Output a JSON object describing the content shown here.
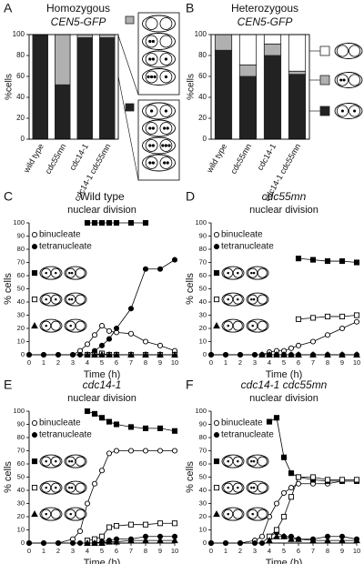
{
  "chart_data": [
    {
      "type": "stacked-bar",
      "panel": "A",
      "title": "Homozygous",
      "subtitle": "CEN5-GFP",
      "ylabel": "%cells",
      "categories": [
        "wild type",
        "cdc55mn",
        "cdc14-1",
        "cdc14-1 cdc55mn"
      ],
      "series": [
        {
          "color": "#222222",
          "values": [
            100,
            52,
            97,
            97
          ]
        },
        {
          "color": "#b0b0b0",
          "values": [
            0,
            48,
            3,
            3
          ]
        }
      ],
      "ylim": [
        0,
        100
      ],
      "yticks": [
        0,
        20,
        40,
        60,
        80,
        100
      ]
    },
    {
      "type": "stacked-bar",
      "panel": "B",
      "title": "Heterozygous",
      "subtitle": "CEN5-GFP",
      "ylabel": "%cells",
      "categories": [
        "wild type",
        "cdc55mn",
        "cdc14-1",
        "cdc14-1 cdc55mn"
      ],
      "series": [
        {
          "color": "#222222",
          "values": [
            85,
            60,
            80,
            62
          ]
        },
        {
          "color": "#b0b0b0",
          "values": [
            15,
            11,
            11,
            3
          ]
        },
        {
          "color": "#ffffff",
          "values": [
            0,
            29,
            9,
            35
          ]
        }
      ],
      "ylim": [
        0,
        100
      ],
      "yticks": [
        0,
        20,
        40,
        60,
        80,
        100
      ]
    },
    {
      "type": "line",
      "panel": "C",
      "title": "Wild type",
      "subtitle": "nuclear division",
      "ylabel": "% cells",
      "xlabel": "Time (h)",
      "x": [
        0,
        1,
        2,
        3,
        3.5,
        4,
        4.5,
        5,
        5.5,
        6,
        7,
        8,
        9,
        10
      ],
      "series": [
        {
          "name": "binucleate",
          "marker": "circle-open",
          "color": "#000000",
          "values": [
            0,
            0,
            0,
            0,
            3,
            8,
            15,
            22,
            18,
            17,
            16,
            10,
            7,
            3
          ]
        },
        {
          "name": "tetranucleate",
          "marker": "circle",
          "color": "#000000",
          "values": [
            0,
            0,
            0,
            0,
            0,
            0,
            3,
            7,
            12,
            20,
            35,
            65,
            65,
            72
          ]
        },
        {
          "marker": "square",
          "color": "#000000",
          "values": [
            null,
            null,
            null,
            null,
            null,
            100,
            100,
            100,
            100,
            100,
            100,
            100,
            null,
            null
          ]
        },
        {
          "marker": "square-open",
          "color": "#000000",
          "values": [
            null,
            null,
            null,
            null,
            null,
            0,
            0,
            1,
            0,
            0,
            0,
            0,
            0,
            0
          ]
        },
        {
          "marker": "triangle",
          "color": "#000000",
          "values": [
            null,
            null,
            null,
            null,
            null,
            0,
            0,
            0,
            0,
            0,
            0,
            0,
            0,
            0
          ]
        }
      ],
      "xlim": [
        0,
        10
      ],
      "xticks": [
        0,
        1,
        2,
        3,
        4,
        5,
        6,
        7,
        8,
        9,
        10
      ],
      "ylim": [
        0,
        100
      ],
      "yticks": [
        0,
        10,
        20,
        30,
        40,
        50,
        60,
        70,
        80,
        90,
        100
      ]
    },
    {
      "type": "line",
      "panel": "D",
      "title": "cdc55mn",
      "title_style": "italic",
      "subtitle": "nuclear division",
      "ylabel": "% cells",
      "xlabel": "Time (h)",
      "x": [
        0,
        1,
        2,
        3,
        3.5,
        4,
        4.5,
        5,
        5.5,
        6,
        7,
        8,
        9,
        10
      ],
      "series": [
        {
          "name": "binucleate",
          "marker": "circle-open",
          "color": "#000000",
          "values": [
            0,
            0,
            0,
            0,
            0,
            2,
            3,
            3,
            5,
            7,
            10,
            15,
            20,
            25
          ]
        },
        {
          "name": "tetranucleate",
          "marker": "circle",
          "color": "#000000",
          "values": [
            0,
            0,
            0,
            0,
            0,
            0,
            0,
            0,
            0,
            0,
            0,
            0,
            0,
            0
          ]
        },
        {
          "marker": "square",
          "color": "#000000",
          "values": [
            null,
            null,
            null,
            null,
            null,
            null,
            null,
            null,
            null,
            73,
            72,
            71,
            71,
            70
          ]
        },
        {
          "marker": "square-open",
          "color": "#000000",
          "values": [
            null,
            null,
            null,
            null,
            null,
            null,
            null,
            null,
            null,
            27,
            28,
            29,
            29,
            30
          ]
        },
        {
          "marker": "triangle",
          "color": "#000000",
          "values": [
            null,
            null,
            null,
            null,
            0,
            0,
            0,
            0,
            0,
            0,
            0,
            0,
            0,
            0
          ]
        }
      ],
      "xlim": [
        0,
        10
      ],
      "xticks": [
        0,
        1,
        2,
        3,
        4,
        5,
        6,
        7,
        8,
        9,
        10
      ],
      "ylim": [
        0,
        100
      ],
      "yticks": [
        0,
        10,
        20,
        30,
        40,
        50,
        60,
        70,
        80,
        90,
        100
      ]
    },
    {
      "type": "line",
      "panel": "E",
      "title": "cdc14-1",
      "title_style": "italic",
      "subtitle": "nuclear division",
      "ylabel": "% cells",
      "xlabel": "Time (h)",
      "x": [
        0,
        1,
        2,
        3,
        3.5,
        4,
        4.5,
        5,
        5.5,
        6,
        7,
        8,
        9,
        10
      ],
      "series": [
        {
          "name": "binucleate",
          "marker": "circle-open",
          "color": "#000000",
          "values": [
            0,
            0,
            0,
            3,
            9,
            30,
            45,
            55,
            68,
            70,
            70,
            70,
            70,
            70
          ]
        },
        {
          "name": "tetranucleate",
          "marker": "circle",
          "color": "#000000",
          "values": [
            0,
            0,
            0,
            0,
            0,
            0,
            0,
            1,
            2,
            3,
            3,
            5,
            5,
            5
          ]
        },
        {
          "marker": "square",
          "color": "#000000",
          "values": [
            null,
            null,
            null,
            null,
            null,
            100,
            98,
            95,
            92,
            90,
            88,
            87,
            87,
            85
          ]
        },
        {
          "marker": "square-open",
          "color": "#000000",
          "values": [
            null,
            null,
            null,
            null,
            null,
            2,
            3,
            5,
            12,
            13,
            14,
            14,
            15,
            15
          ]
        },
        {
          "marker": "triangle",
          "color": "#000000",
          "values": [
            null,
            null,
            null,
            null,
            null,
            0,
            0,
            0,
            1,
            1,
            2,
            2,
            2,
            2
          ]
        }
      ],
      "xlim": [
        0,
        10
      ],
      "xticks": [
        0,
        1,
        2,
        3,
        4,
        5,
        6,
        7,
        8,
        9,
        10
      ],
      "ylim": [
        0,
        100
      ],
      "yticks": [
        0,
        10,
        20,
        30,
        40,
        50,
        60,
        70,
        80,
        90,
        100
      ]
    },
    {
      "type": "line",
      "panel": "F",
      "title": "cdc14-1 cdc55mn",
      "title_style": "italic",
      "subtitle": "nuclear division",
      "ylabel": "% cells",
      "xlabel": "Time (h)",
      "x": [
        0,
        1,
        2,
        3,
        3.5,
        4,
        4.5,
        5,
        5.5,
        6,
        7,
        8,
        9,
        10
      ],
      "series": [
        {
          "name": "binucleate",
          "marker": "circle-open",
          "color": "#000000",
          "values": [
            0,
            0,
            0,
            2,
            5,
            20,
            30,
            38,
            42,
            45,
            45,
            45,
            47,
            47
          ]
        },
        {
          "name": "tetranucleate",
          "marker": "circle",
          "color": "#000000",
          "values": [
            0,
            0,
            0,
            0,
            0,
            5,
            8,
            5,
            5,
            3,
            3,
            5,
            5,
            3
          ]
        },
        {
          "marker": "square",
          "color": "#000000",
          "values": [
            null,
            null,
            null,
            null,
            null,
            92,
            95,
            65,
            53,
            50,
            48,
            47,
            47,
            47
          ]
        },
        {
          "marker": "square-open",
          "color": "#000000",
          "values": [
            null,
            null,
            null,
            null,
            null,
            5,
            10,
            20,
            35,
            50,
            50,
            48,
            48,
            48
          ]
        },
        {
          "marker": "triangle",
          "color": "#000000",
          "values": [
            null,
            null,
            null,
            null,
            null,
            2,
            5,
            5,
            3,
            3,
            2,
            2,
            2,
            2
          ]
        }
      ],
      "xlim": [
        0,
        10
      ],
      "xticks": [
        0,
        1,
        2,
        3,
        4,
        5,
        6,
        7,
        8,
        9,
        10
      ],
      "ylim": [
        0,
        100
      ],
      "yticks": [
        0,
        10,
        20,
        30,
        40,
        50,
        60,
        70,
        80,
        90,
        100
      ]
    }
  ]
}
